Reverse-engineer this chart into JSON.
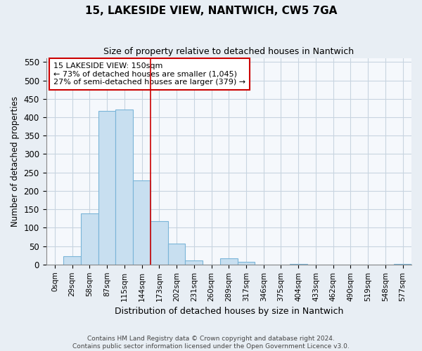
{
  "title_line1": "15, LAKESIDE VIEW, NANTWICH, CW5 7GA",
  "title_line2": "Size of property relative to detached houses in Nantwich",
  "xlabel": "Distribution of detached houses by size in Nantwich",
  "ylabel": "Number of detached properties",
  "categories": [
    "0sqm",
    "29sqm",
    "58sqm",
    "87sqm",
    "115sqm",
    "144sqm",
    "173sqm",
    "202sqm",
    "231sqm",
    "260sqm",
    "289sqm",
    "317sqm",
    "346sqm",
    "375sqm",
    "404sqm",
    "433sqm",
    "462sqm",
    "490sqm",
    "519sqm",
    "548sqm",
    "577sqm"
  ],
  "values": [
    0,
    22,
    138,
    418,
    420,
    228,
    118,
    57,
    12,
    0,
    16,
    7,
    0,
    0,
    2,
    0,
    0,
    0,
    0,
    0,
    2
  ],
  "bar_color": "#c8dff0",
  "bar_edgecolor": "#7ab5d8",
  "property_line_x": 5.5,
  "annotation_line1": "15 LAKESIDE VIEW: 150sqm",
  "annotation_line2": "← 73% of detached houses are smaller (1,045)",
  "annotation_line3": "27% of semi-detached houses are larger (379) →",
  "annotation_box_color": "#cc0000",
  "vline_color": "#cc0000",
  "ylim": [
    0,
    560
  ],
  "yticks": [
    0,
    50,
    100,
    150,
    200,
    250,
    300,
    350,
    400,
    450,
    500,
    550
  ],
  "footer_line1": "Contains HM Land Registry data © Crown copyright and database right 2024.",
  "footer_line2": "Contains public sector information licensed under the Open Government Licence v3.0.",
  "background_color": "#e8eef4",
  "plot_background": "#f5f8fc",
  "grid_color": "#c8d4e0"
}
